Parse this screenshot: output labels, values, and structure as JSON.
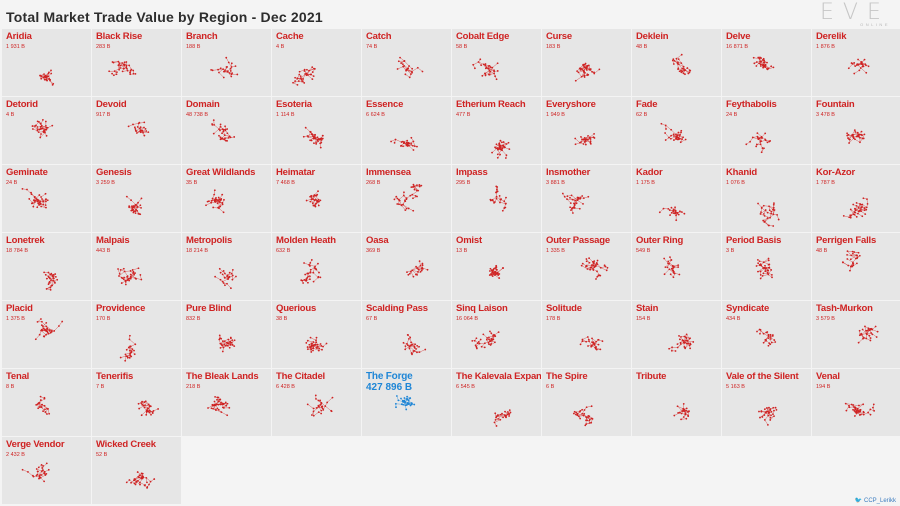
{
  "title": "Total Market Trade Value by Region - Dec 2021",
  "logo": {
    "text": "EVE",
    "subtext": "ONLINE"
  },
  "credit": "CCP_Lerikk",
  "colors": {
    "region": "#cf2323",
    "highlight": "#1f86d6",
    "tile": "#e6e6e6"
  },
  "regions": [
    {
      "name": "Aridia",
      "value": "1 931 B"
    },
    {
      "name": "Black Rise",
      "value": "283 B"
    },
    {
      "name": "Branch",
      "value": "188 B"
    },
    {
      "name": "Cache",
      "value": "4 B"
    },
    {
      "name": "Catch",
      "value": "74 B"
    },
    {
      "name": "Cobalt Edge",
      "value": "58 B"
    },
    {
      "name": "Curse",
      "value": "183 B"
    },
    {
      "name": "Deklein",
      "value": "48 B"
    },
    {
      "name": "Delve",
      "value": "16 871 B"
    },
    {
      "name": "Derelik",
      "value": "1 876 B"
    },
    {
      "name": "Detorid",
      "value": "4 B"
    },
    {
      "name": "Devoid",
      "value": "917 B"
    },
    {
      "name": "Domain",
      "value": "48 738 B"
    },
    {
      "name": "Esoteria",
      "value": "1 114 B"
    },
    {
      "name": "Essence",
      "value": "6 624 B"
    },
    {
      "name": "Etherium Reach",
      "value": "477 B"
    },
    {
      "name": "Everyshore",
      "value": "1 949 B"
    },
    {
      "name": "Fade",
      "value": "62 B"
    },
    {
      "name": "Feythabolis",
      "value": "24 B"
    },
    {
      "name": "Fountain",
      "value": "3 478 B"
    },
    {
      "name": "Geminate",
      "value": "24 B"
    },
    {
      "name": "Genesis",
      "value": "3 259 B"
    },
    {
      "name": "Great Wildlands",
      "value": "35 B"
    },
    {
      "name": "Heimatar",
      "value": "7 468 B"
    },
    {
      "name": "Immensea",
      "value": "268 B"
    },
    {
      "name": "Impass",
      "value": "295 B"
    },
    {
      "name": "Insmother",
      "value": "3 881 B"
    },
    {
      "name": "Kador",
      "value": "1 175 B"
    },
    {
      "name": "Khanid",
      "value": "1 076 B"
    },
    {
      "name": "Kor-Azor",
      "value": "1 787 B"
    },
    {
      "name": "Lonetrek",
      "value": "18 784 B"
    },
    {
      "name": "Malpais",
      "value": "443 B"
    },
    {
      "name": "Metropolis",
      "value": "18 214 B"
    },
    {
      "name": "Molden Heath",
      "value": "632 B"
    },
    {
      "name": "Oasa",
      "value": "369 B"
    },
    {
      "name": "Omist",
      "value": "13 B"
    },
    {
      "name": "Outer Passage",
      "value": "1 335 B"
    },
    {
      "name": "Outer Ring",
      "value": "549 B"
    },
    {
      "name": "Period Basis",
      "value": "3 B"
    },
    {
      "name": "Perrigen Falls",
      "value": "48 B"
    },
    {
      "name": "Placid",
      "value": "1 375 B"
    },
    {
      "name": "Providence",
      "value": "170 B"
    },
    {
      "name": "Pure Blind",
      "value": "832 B"
    },
    {
      "name": "Querious",
      "value": "38 B"
    },
    {
      "name": "Scalding Pass",
      "value": "67 B"
    },
    {
      "name": "Sinq Laison",
      "value": "16 064 B"
    },
    {
      "name": "Solitude",
      "value": "178 B"
    },
    {
      "name": "Stain",
      "value": "154 B"
    },
    {
      "name": "Syndicate",
      "value": "434 B"
    },
    {
      "name": "Tash-Murkon",
      "value": "3 579 B"
    },
    {
      "name": "Tenal",
      "value": "8 B"
    },
    {
      "name": "Tenerifis",
      "value": "7 B"
    },
    {
      "name": "The Bleak Lands",
      "value": "218 B"
    },
    {
      "name": "The Citadel",
      "value": "6 428 B"
    },
    {
      "name": "The Forge",
      "value": "427 896 B",
      "highlight": true
    },
    {
      "name": "The Kalevala Expanse",
      "value": "6 545 B"
    },
    {
      "name": "The Spire",
      "value": "6 B"
    },
    {
      "name": "Tribute",
      "value": ""
    },
    {
      "name": "Vale of the Silent",
      "value": "5 163 B"
    },
    {
      "name": "Venal",
      "value": "194 B"
    },
    {
      "name": "Verge Vendor",
      "value": "2 432 B"
    },
    {
      "name": "Wicked Creek",
      "value": "52 B"
    }
  ]
}
